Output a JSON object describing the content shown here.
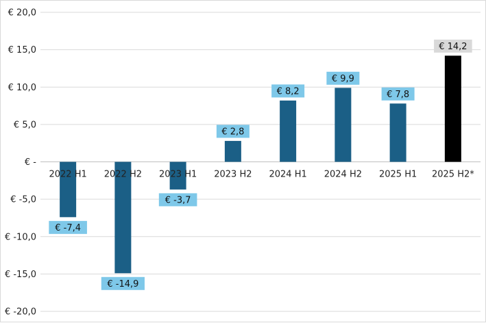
{
  "chart_data": {
    "type": "bar",
    "categories": [
      "2022 H1",
      "2022 H2",
      "2023 H1",
      "2023 H2",
      "2024 H1",
      "2024 H2",
      "2025 H1",
      "2025 H2*"
    ],
    "values": [
      -7.4,
      -14.9,
      -3.7,
      2.8,
      8.2,
      9.9,
      7.8,
      14.2
    ],
    "data_labels": [
      "€ -7,4",
      "€ -14,9",
      "€ -3,7",
      "€ 2,8",
      "€ 8,2",
      "€ 9,9",
      "€ 7,8",
      "€ 14,2"
    ],
    "y_ticks": [
      {
        "value": 20,
        "label": "€ 20,0"
      },
      {
        "value": 15,
        "label": "€ 15,0"
      },
      {
        "value": 10,
        "label": "€ 10,0"
      },
      {
        "value": 5,
        "label": "€ 5,0"
      },
      {
        "value": 0,
        "label": "€ -"
      },
      {
        "value": -5,
        "label": "€ -5,0"
      },
      {
        "value": -10,
        "label": "€ -10,0"
      },
      {
        "value": -15,
        "label": "€ -15,0"
      },
      {
        "value": -20,
        "label": "€ -20,0"
      }
    ],
    "ylim": [
      -20,
      20
    ],
    "grid": true,
    "legend": "none",
    "title": "",
    "xlabel": "",
    "ylabel": "",
    "colors": {
      "bar": "#1b5f86",
      "highlight_bar": "#000000",
      "label_bg": "#7ec8e9",
      "highlight_label_bg": "#d9d9d9",
      "grid": "#d9d9d9",
      "axis": "#bfbfbf"
    },
    "highlight_categories": [
      "2025 H2*"
    ]
  }
}
